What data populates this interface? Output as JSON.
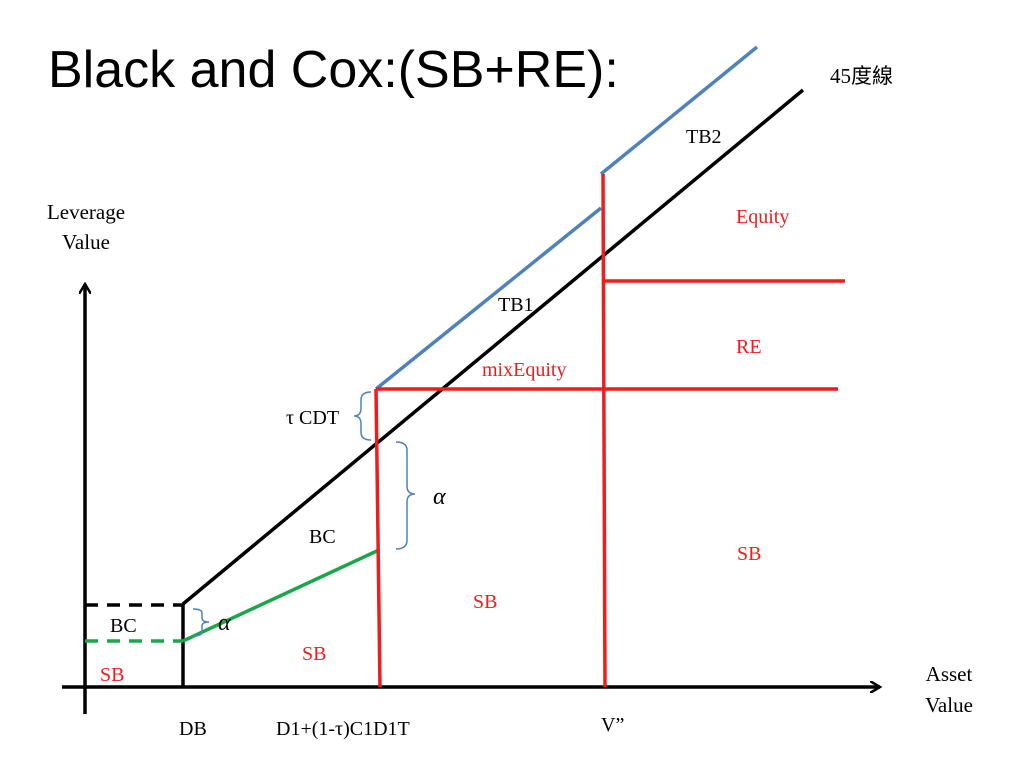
{
  "title": "Black and Cox:(SB+RE):",
  "labels": {
    "degree_line": "45度線",
    "tb2": "TB2",
    "tb1": "TB1",
    "y_axis_line1": "Leverage",
    "y_axis_line2": "Value",
    "x_axis_line1": "Asset",
    "x_axis_line2": "Value",
    "equity": "Equity",
    "re": "RE",
    "mix_equity": "mixEquity",
    "tau_cdt": "τ CDT",
    "alpha_upper": "α",
    "alpha_lower": "α",
    "bc_middle": "BC",
    "bc_left": "BC",
    "sb_left": "SB",
    "sb_lower": "SB",
    "sb_middle": "SB",
    "sb_right": "SB",
    "db": "DB",
    "d1_expr": "D1+(1-τ)C1D1T",
    "v_double_prime": "V”"
  },
  "colors": {
    "red": "#ee1c1c",
    "blue": "#4f81bd",
    "green": "#1aa64a",
    "black": "#000000"
  }
}
